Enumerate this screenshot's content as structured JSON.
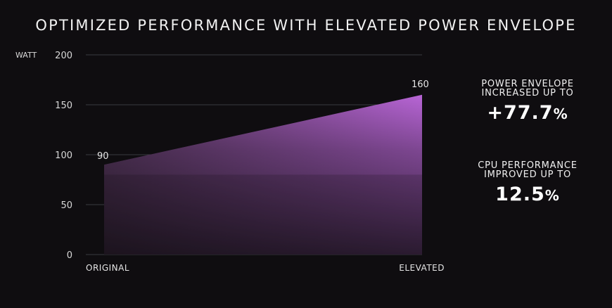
{
  "title": "OPTIMIZED PERFORMANCE WITH ELEVATED POWER ENVELOPE",
  "callouts": [
    {
      "label_line1": "POWER ENVELOPE",
      "label_line2": "INCREASED UP TO",
      "value": "+77.7",
      "unit": "%"
    },
    {
      "label_line1": "CPU PERFORMANCE",
      "label_line2": "IMPROVED UP TO",
      "value": "12.5",
      "unit": "%"
    }
  ],
  "chart_data": {
    "type": "area",
    "ylabel": "WATT",
    "ylim": [
      0,
      200
    ],
    "yticks": [
      "0",
      "50",
      "100",
      "150",
      "200"
    ],
    "categories": [
      "ORIGINAL",
      "ELEVATED"
    ],
    "values": [
      90,
      160
    ],
    "data_labels": [
      "90",
      "160"
    ],
    "grid": true,
    "colors": {
      "fill_top": "#b865d6",
      "fill_bottom": "#2a1a2e",
      "grid": "#3a3a3f"
    }
  }
}
